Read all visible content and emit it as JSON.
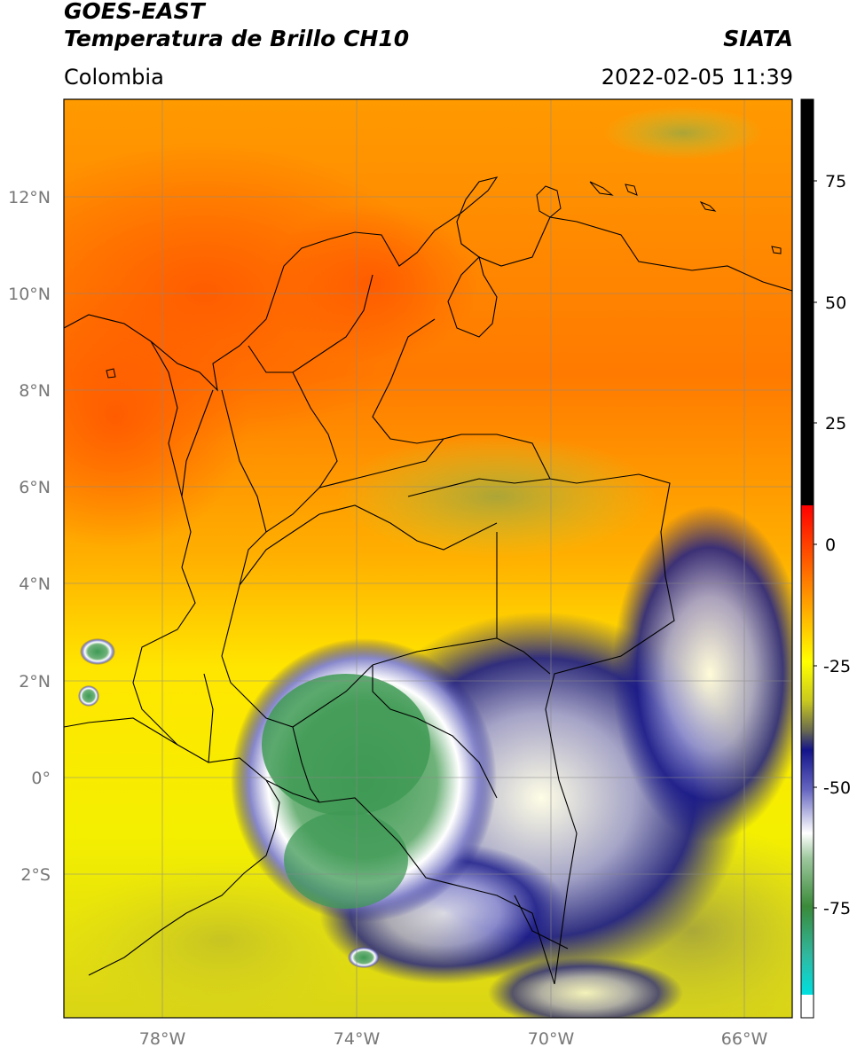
{
  "header": {
    "satellite": "GOES-EAST",
    "product": "Temperatura de Brillo CH10",
    "organization": "SIATA",
    "region": "Colombia",
    "datetime": "2022-02-05 11:39"
  },
  "map": {
    "lat_labels": [
      "12°N",
      "10°N",
      "8°N",
      "6°N",
      "4°N",
      "2°N",
      "0°",
      "2°S"
    ],
    "lon_labels": [
      "78°W",
      "74°W",
      "70°W",
      "66°W"
    ],
    "colorbar_labels": [
      "75",
      "50",
      "25",
      "0",
      "-25",
      "-50",
      "-75"
    ]
  }
}
